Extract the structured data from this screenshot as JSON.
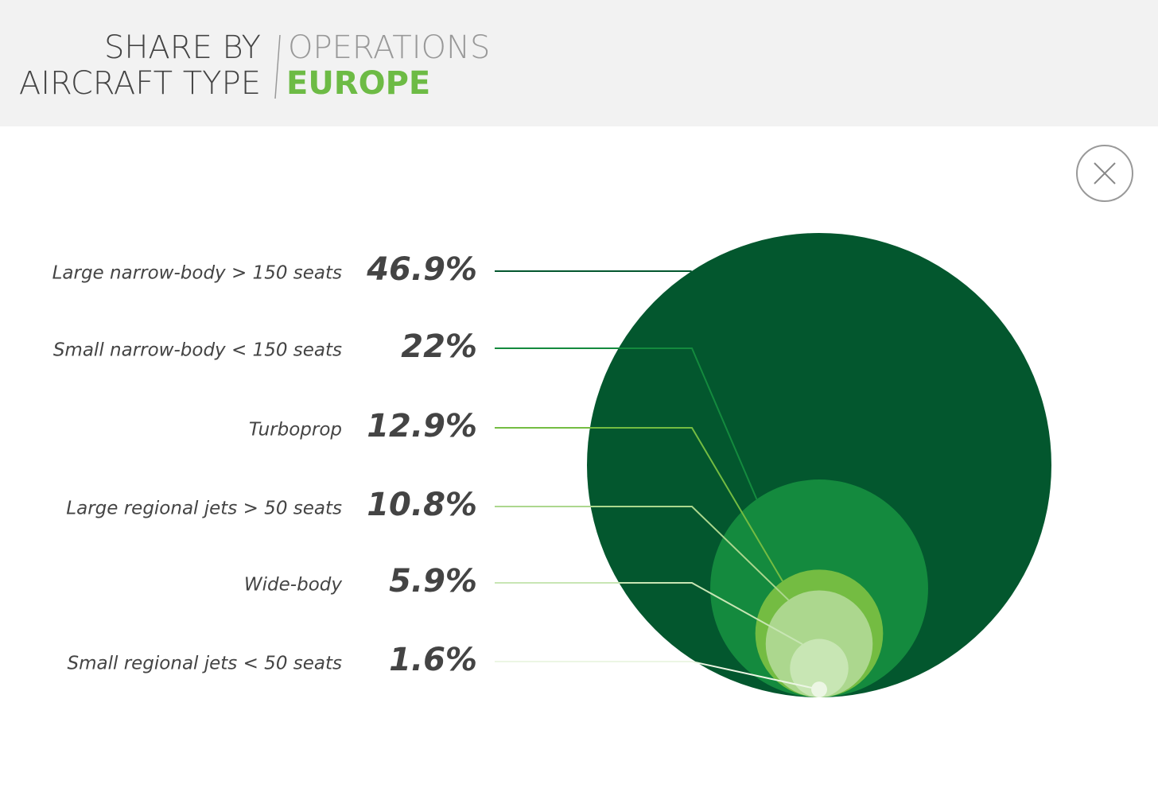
{
  "chart_data": {
    "type": "nested-bubble",
    "title": [
      "SHARE BY",
      "AIRCRAFT TYPE"
    ],
    "subtitle": [
      "OPERATIONS",
      "EUROPE"
    ],
    "categories": [
      "Large narrow-body > 150 seats",
      "Small narrow-body < 150 seats",
      "Turboprop",
      "Large regional jets > 50 seats",
      "Wide-body",
      "Small regional jets < 50 seats"
    ],
    "values": [
      46.9,
      22,
      12.9,
      10.8,
      5.9,
      1.6
    ],
    "value_labels": [
      "46.9%",
      "22%",
      "12.9%",
      "10.8%",
      "5.9%",
      "1.6%"
    ],
    "colors": [
      "#03572e",
      "#148a3e",
      "#74bc42",
      "#acd78e",
      "#c8e6b4",
      "#ecf6e4"
    ]
  }
}
